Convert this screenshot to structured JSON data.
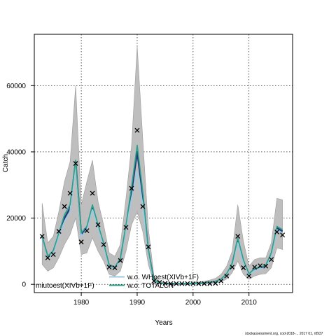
{
  "chart_data": {
    "type": "line",
    "xlabel": "Years",
    "ylabel": "Catch",
    "xlim": [
      1971.6,
      2017.8
    ],
    "ylim": [
      -2500,
      75500
    ],
    "x_ticks": [
      1980,
      1990,
      2000,
      2010
    ],
    "y_ticks": [
      0,
      20000,
      40000,
      60000
    ],
    "x_tick_labels": [
      "1980",
      "1990",
      "2000",
      "2010"
    ],
    "y_tick_labels": [
      "0",
      "20000",
      "40000",
      "60000"
    ],
    "grid": true,
    "legend_placement": "bottom-center",
    "legend": [
      {
        "label": "miutoest(XIVb+1F)",
        "color": "#1f3b7a"
      },
      {
        "label": "w.o. WHoest(XIVb+1F)",
        "color": "#9ecae1"
      },
      {
        "label": "w.o. TOTALCN",
        "color": "#2ca089"
      }
    ],
    "years": [
      1973,
      1974,
      1975,
      1976,
      1977,
      1978,
      1979,
      1980,
      1981,
      1982,
      1983,
      1984,
      1985,
      1986,
      1987,
      1988,
      1989,
      1990,
      1991,
      1992,
      1993,
      1994,
      1995,
      1996,
      1997,
      1998,
      1999,
      2000,
      2001,
      2002,
      2003,
      2004,
      2005,
      2006,
      2007,
      2008,
      2009,
      2010,
      2011,
      2012,
      2013,
      2014,
      2015,
      2016
    ],
    "observed": [
      14500,
      8000,
      9000,
      16000,
      23500,
      27500,
      36500,
      12800,
      16200,
      27500,
      18000,
      12000,
      5200,
      5000,
      7200,
      17200,
      29000,
      46500,
      23500,
      11300,
      1000,
      600,
      300,
      200,
      200,
      200,
      200,
      200,
      200,
      200,
      200,
      300,
      1000,
      2500,
      5200,
      14500,
      5000,
      2500,
      5200,
      5600,
      5500,
      7500,
      15800,
      14900
    ],
    "series": [
      {
        "name": "miutoest(XIVb+1F)",
        "color": "#1f3b7a",
        "values": [
          14200,
          8300,
          10000,
          15000,
          20000,
          23000,
          37000,
          15000,
          17000,
          23000,
          17500,
          12000,
          5500,
          5000,
          7500,
          17000,
          28000,
          40000,
          27000,
          10000,
          1200,
          400,
          200,
          150,
          150,
          150,
          150,
          200,
          300,
          400,
          600,
          800,
          1500,
          3000,
          6000,
          13500,
          7000,
          3000,
          4500,
          5000,
          5500,
          9000,
          17000,
          16000
        ]
      },
      {
        "name": "w.o. WHoest(XIVb+1F)",
        "color": "#9ecae1",
        "values": [
          14000,
          8000,
          9500,
          14500,
          19000,
          22000,
          36000,
          14500,
          16500,
          22500,
          17000,
          11500,
          5200,
          4800,
          7200,
          16500,
          26000,
          34000,
          24000,
          9500,
          1100,
          400,
          200,
          150,
          150,
          150,
          150,
          200,
          300,
          400,
          600,
          800,
          1400,
          2800,
          5500,
          12500,
          6500,
          2800,
          4200,
          4800,
          5200,
          8500,
          16500,
          15500
        ]
      },
      {
        "name": "w.o. TOTALCN",
        "color": "#2ca089",
        "values": [
          14500,
          8500,
          10200,
          15500,
          21000,
          24000,
          37500,
          15500,
          17500,
          24000,
          18000,
          12500,
          5800,
          5200,
          7800,
          18000,
          29500,
          42000,
          28000,
          10500,
          1300,
          450,
          200,
          150,
          150,
          150,
          150,
          200,
          300,
          400,
          650,
          900,
          1600,
          3200,
          6300,
          14000,
          7400,
          3200,
          4800,
          5200,
          5800,
          9500,
          17500,
          16500
        ]
      }
    ],
    "band_lower": [
      6000,
      4000,
      5000,
      8000,
      12000,
      15000,
      20000,
      9000,
      9500,
      14000,
      10000,
      7000,
      3000,
      2500,
      4000,
      10000,
      18000,
      22000,
      16000,
      6000,
      400,
      200,
      100,
      50,
      50,
      50,
      50,
      80,
      100,
      150,
      250,
      350,
      700,
      1600,
      3500,
      7000,
      3000,
      1500,
      2500,
      3000,
      3200,
      5000,
      11000,
      10500
    ],
    "band_upper": [
      24500,
      12500,
      14500,
      22000,
      31000,
      37000,
      60000,
      24000,
      31000,
      37500,
      25000,
      18000,
      9500,
      8500,
      12000,
      26000,
      42000,
      72000,
      44000,
      17000,
      2500,
      900,
      500,
      400,
      400,
      400,
      400,
      500,
      700,
      900,
      1300,
      1800,
      3000,
      5500,
      10000,
      24000,
      13000,
      5500,
      7500,
      8000,
      8000,
      12500,
      26000,
      25500
    ]
  },
  "footer": "stockassessment.org, cod-2018-... 2017 01, r8937"
}
